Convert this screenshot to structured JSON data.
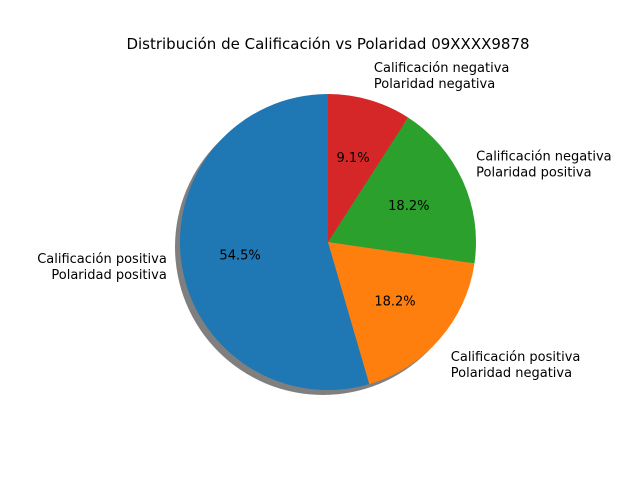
{
  "chart_data": {
    "type": "pie",
    "title": "Distribución de Calificación vs Polaridad 09XXXX9878",
    "start_angle_deg": 90,
    "direction": "counterclockwise",
    "shadow": true,
    "slices": [
      {
        "label_line1": "Calificación positiva",
        "label_line2": "Polaridad positiva",
        "value": 54.5,
        "pct_label": "54.5%",
        "color": "#1f77b4"
      },
      {
        "label_line1": "Calificación positiva",
        "label_line2": "Polaridad negativa",
        "value": 18.2,
        "pct_label": "18.2%",
        "color": "#ff7f0e"
      },
      {
        "label_line1": "Calificación negativa",
        "label_line2": "Polaridad positiva",
        "value": 18.2,
        "pct_label": "18.2%",
        "color": "#2ca02c"
      },
      {
        "label_line1": "Calificación negativa",
        "label_line2": "Polaridad negativa",
        "value": 9.1,
        "pct_label": "9.1%",
        "color": "#d62728"
      }
    ]
  }
}
